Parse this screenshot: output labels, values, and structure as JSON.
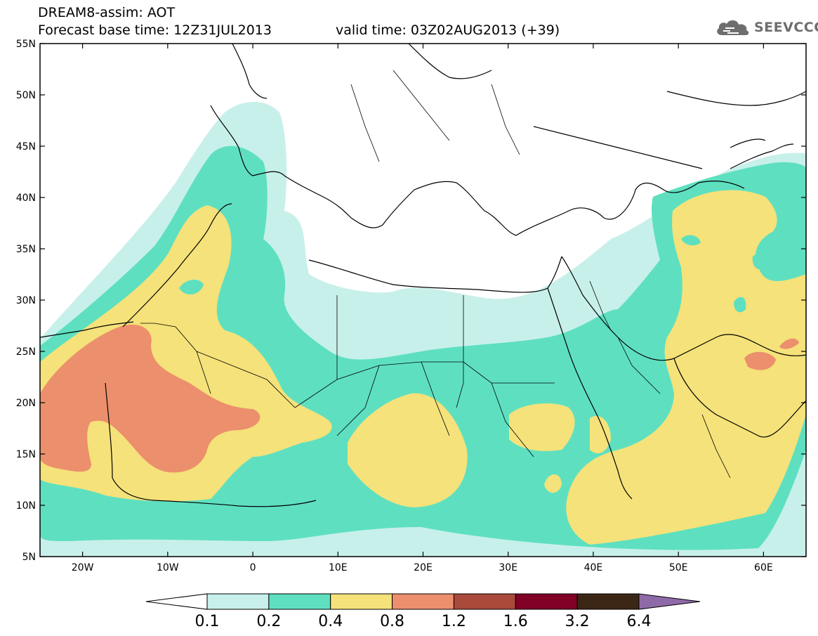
{
  "header": {
    "model_title": "DREAM8-assim: AOT",
    "base_time": "Forecast base time: 12Z31JUL2013",
    "valid_time": "valid time: 03Z02AUG2013 (+39)"
  },
  "logo": {
    "text": "SEEVCCC",
    "icon": "cloud-icon"
  },
  "map": {
    "lat_labels": [
      "55N",
      "50N",
      "45N",
      "40N",
      "35N",
      "30N",
      "25N",
      "20N",
      "15N",
      "10N",
      "5N"
    ],
    "lon_labels": [
      "20W",
      "10W",
      "0",
      "10E",
      "20E",
      "30E",
      "40E",
      "50E",
      "60E"
    ],
    "extent": {
      "lon_min": -25,
      "lon_max": 65,
      "lat_min": 5,
      "lat_max": 55
    }
  },
  "colorbar": {
    "labels": [
      "0.1",
      "0.2",
      "0.4",
      "0.8",
      "1.2",
      "1.6",
      "3.2",
      "6.4"
    ],
    "colors": [
      "#ffffff",
      "#c8f0ea",
      "#5ee0c0",
      "#f5e27a",
      "#ec8f6c",
      "#a94a3c",
      "#800026",
      "#3b2616",
      "#8f6aa8"
    ]
  },
  "palette": {
    "lt": "#c8f0ea",
    "gr": "#5ee0c0",
    "ye": "#f5e27a",
    "or": "#ec8f6c"
  }
}
